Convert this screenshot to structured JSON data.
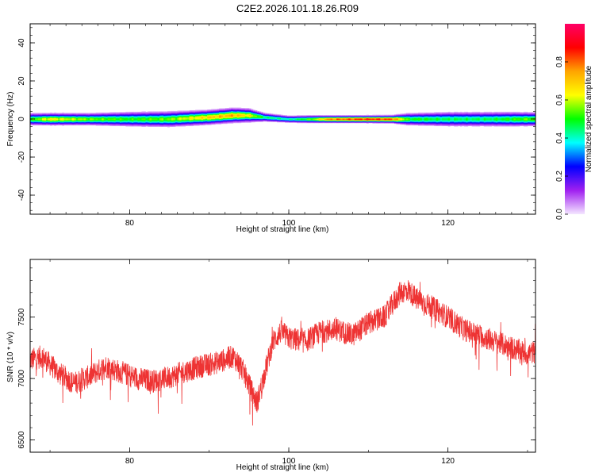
{
  "figure_title": "C2E2.2026.101.18.26.R09",
  "chart_data": [
    {
      "type": "heatmap",
      "xlabel": "Height of straight line (km)",
      "ylabel": "Frequency (Hz)",
      "xlim": [
        67.5,
        131
      ],
      "ylim": [
        -50,
        50
      ],
      "xticks": [
        80,
        100,
        120
      ],
      "xtick_labels": [
        "80",
        "100",
        "120"
      ],
      "yticks": [
        -40,
        -20,
        0,
        20,
        40
      ],
      "ytick_labels": [
        "-40",
        "-20",
        "0",
        "20",
        "40"
      ],
      "colorbar": {
        "label": "Normalized spectral amplitude",
        "range": [
          0,
          1
        ],
        "ticks": [
          0.0,
          0.2,
          0.4,
          0.6,
          0.8
        ],
        "tick_labels": [
          "0.0",
          "0.2",
          "0.4",
          "0.6",
          "0.8"
        ],
        "colors": [
          "#f4e6ff",
          "#a020f0",
          "#0000ff",
          "#00ffff",
          "#00ff00",
          "#ffff00",
          "#ffa500",
          "#ff0000",
          "#ff0066"
        ]
      },
      "profile": {
        "x": [
          67.5,
          70,
          75,
          80,
          85,
          90,
          93,
          95,
          97,
          100,
          103,
          105,
          110,
          113,
          115,
          120,
          125,
          128,
          131
        ],
        "center_freq": [
          0,
          0,
          0,
          0,
          0,
          1,
          2,
          2,
          1,
          0,
          0,
          0,
          0,
          0,
          0,
          0,
          0,
          0,
          0
        ],
        "peak_amplitude": [
          0.55,
          0.7,
          0.6,
          0.55,
          0.6,
          0.75,
          0.8,
          0.7,
          0.5,
          0.45,
          0.6,
          0.85,
          0.95,
          0.9,
          0.55,
          0.5,
          0.5,
          0.55,
          0.6
        ],
        "halfwidth_hz": [
          2.5,
          2.5,
          2.5,
          3,
          3.2,
          3,
          3,
          2.8,
          1.8,
          1.5,
          1.6,
          1.5,
          1.5,
          1.6,
          2.5,
          3,
          3,
          3,
          2.8
        ]
      }
    },
    {
      "type": "line",
      "xlabel": "Height of straight line (km)",
      "ylabel": "SNR (10 * v/v)",
      "xlim": [
        67.5,
        131
      ],
      "ylim": [
        6400,
        7970
      ],
      "xticks": [
        80,
        100,
        120
      ],
      "xtick_labels": [
        "80",
        "100",
        "120"
      ],
      "yticks": [
        6500,
        7000,
        7500
      ],
      "ytick_labels": [
        "6500",
        "7000",
        "7500"
      ],
      "color": "#ee3333",
      "trend": {
        "x": [
          67.5,
          69,
          71,
          73,
          75,
          77,
          79,
          81,
          83,
          85,
          87,
          89,
          91,
          93,
          94,
          95,
          96,
          97,
          98,
          99,
          100,
          102,
          104,
          106,
          108,
          110,
          112,
          114,
          115,
          116,
          118,
          120,
          122,
          124,
          126,
          128,
          130,
          131
        ],
        "y": [
          7150,
          7180,
          7050,
          6960,
          7020,
          7100,
          7050,
          7000,
          6980,
          7010,
          7060,
          7100,
          7130,
          7180,
          7100,
          6950,
          6800,
          7050,
          7300,
          7380,
          7330,
          7300,
          7380,
          7400,
          7350,
          7450,
          7500,
          7700,
          7720,
          7650,
          7580,
          7500,
          7400,
          7350,
          7300,
          7250,
          7200,
          7220
        ]
      },
      "noise_amplitude": 95
    }
  ]
}
